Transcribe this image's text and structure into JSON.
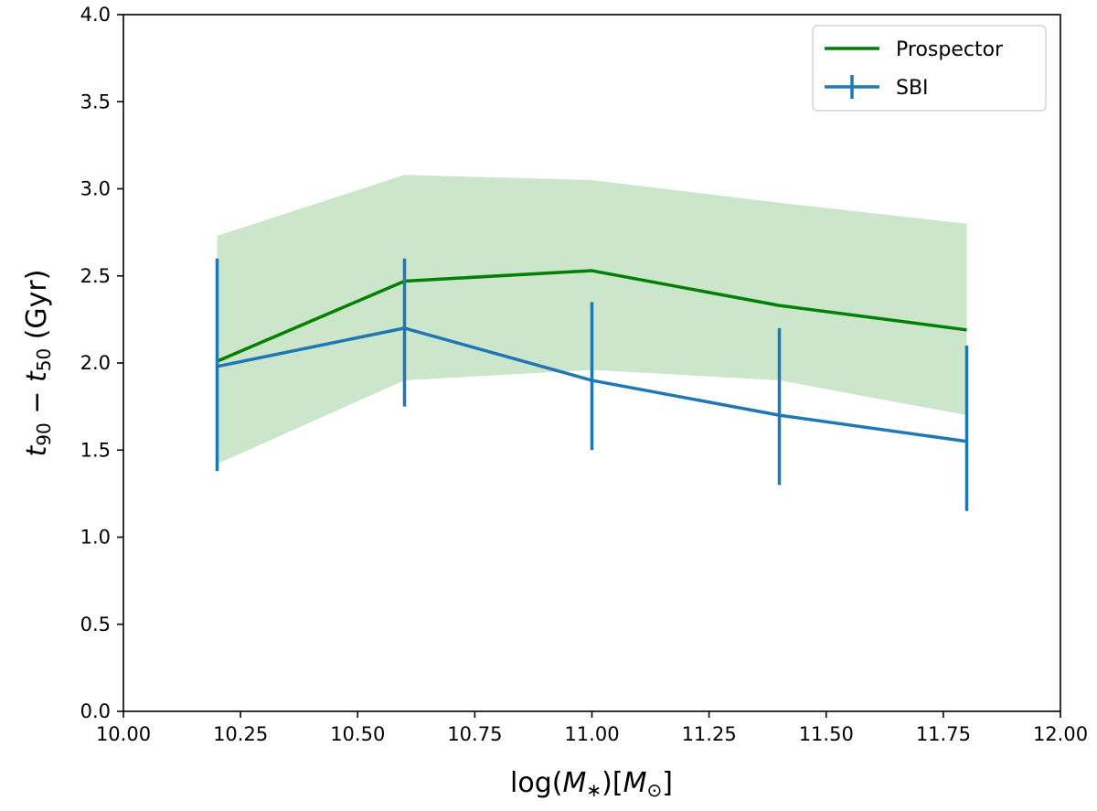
{
  "chart_data": {
    "type": "line",
    "xlabel": {
      "pre": "log(",
      "var1": "M",
      "sub1": "∗",
      "mid": ")[",
      "var2": "M",
      "sub2": "⊙",
      "post": "]"
    },
    "ylabel": {
      "t1": "t",
      "s1": "90",
      "minus": " − ",
      "t2": "t",
      "s2": "50",
      "unit": " (Gyr)"
    },
    "xlim": [
      10.0,
      12.0
    ],
    "ylim": [
      0.0,
      4.0
    ],
    "xticks": [
      "10.00",
      "10.25",
      "10.50",
      "10.75",
      "11.00",
      "11.25",
      "11.50",
      "11.75",
      "12.00"
    ],
    "yticks": [
      "0.0",
      "0.5",
      "1.0",
      "1.5",
      "2.0",
      "2.5",
      "3.0",
      "3.5",
      "4.0"
    ],
    "grid": false,
    "legend_position": "top-right",
    "colors": {
      "prospector": "#008000",
      "band": "#008000",
      "sbi": "#1f77b4"
    },
    "series": [
      {
        "name": "Prospector",
        "kind": "line_with_band",
        "x": [
          10.2,
          10.6,
          11.0,
          11.4,
          11.8
        ],
        "y": [
          2.01,
          2.47,
          2.53,
          2.33,
          2.19
        ],
        "band_low": [
          1.42,
          1.9,
          1.96,
          1.9,
          1.7
        ],
        "band_high": [
          2.73,
          3.08,
          3.05,
          2.92,
          2.8
        ]
      },
      {
        "name": "SBI",
        "kind": "errorbar",
        "x": [
          10.2,
          10.6,
          11.0,
          11.4,
          11.8
        ],
        "y": [
          1.98,
          2.2,
          1.9,
          1.7,
          1.55
        ],
        "err_low": [
          1.38,
          1.75,
          1.5,
          1.3,
          1.15
        ],
        "err_high": [
          2.6,
          2.6,
          2.35,
          2.2,
          2.1
        ]
      }
    ]
  }
}
